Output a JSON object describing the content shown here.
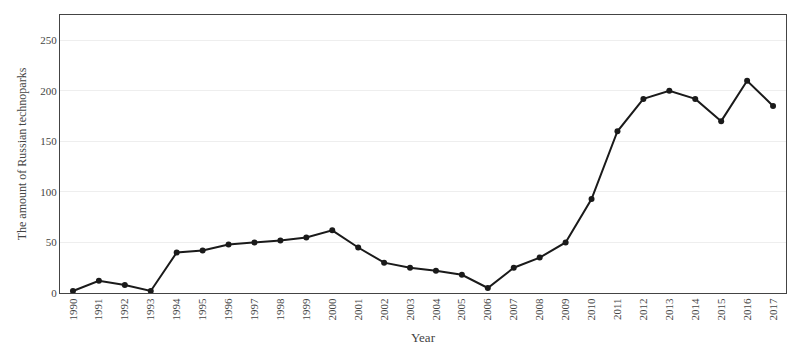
{
  "chart_data": {
    "type": "line",
    "x": [
      1990,
      1991,
      1992,
      1993,
      1994,
      1995,
      1996,
      1997,
      1998,
      1999,
      2000,
      2001,
      2002,
      2003,
      2004,
      2005,
      2006,
      2007,
      2008,
      2009,
      2010,
      2011,
      2012,
      2013,
      2014,
      2015,
      2016,
      2017
    ],
    "values": [
      2,
      12,
      8,
      2,
      40,
      42,
      48,
      50,
      52,
      55,
      62,
      45,
      30,
      25,
      22,
      18,
      5,
      25,
      35,
      50,
      93,
      160,
      192,
      200,
      192,
      170,
      210,
      185
    ],
    "x_label": "Year",
    "y_label": "The amount of Russian technoparks",
    "xlim": [
      1989.5,
      2017.5
    ],
    "xticks": [
      1990,
      1991,
      1992,
      1993,
      1994,
      1995,
      1996,
      1997,
      1998,
      1999,
      2000,
      2001,
      2002,
      2003,
      2004,
      2005,
      2006,
      2007,
      2008,
      2009,
      2010,
      2011,
      2012,
      2013,
      2014,
      2015,
      2016,
      2017
    ],
    "ylim": [
      0,
      275
    ],
    "yticks": [
      0,
      50,
      100,
      150,
      200,
      250
    ],
    "color": "#1a1a1a",
    "marker": "circle",
    "line_style": "solid",
    "grid": "y"
  }
}
